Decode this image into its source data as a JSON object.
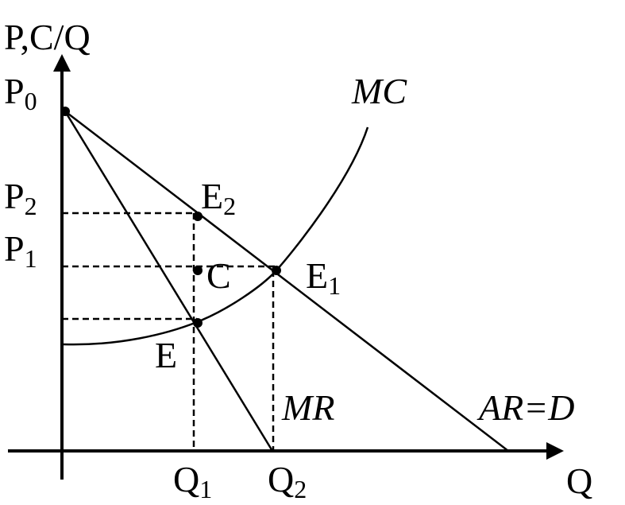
{
  "axis_y_label": "P,C/Q",
  "axis_x_label": "Q",
  "labels": {
    "p0": {
      "base": "P",
      "sub": "0"
    },
    "p2": {
      "base": "P",
      "sub": "2"
    },
    "p1": {
      "base": "P",
      "sub": "1"
    },
    "e2": {
      "base": "E",
      "sub": "2"
    },
    "e1": {
      "base": "E",
      "sub": "1"
    },
    "q1": {
      "base": "Q",
      "sub": "1"
    },
    "q2": {
      "base": "Q",
      "sub": "2"
    },
    "c": "C",
    "e": "E",
    "mc": "MC",
    "mr": "MR",
    "ar": "AR=D"
  }
}
